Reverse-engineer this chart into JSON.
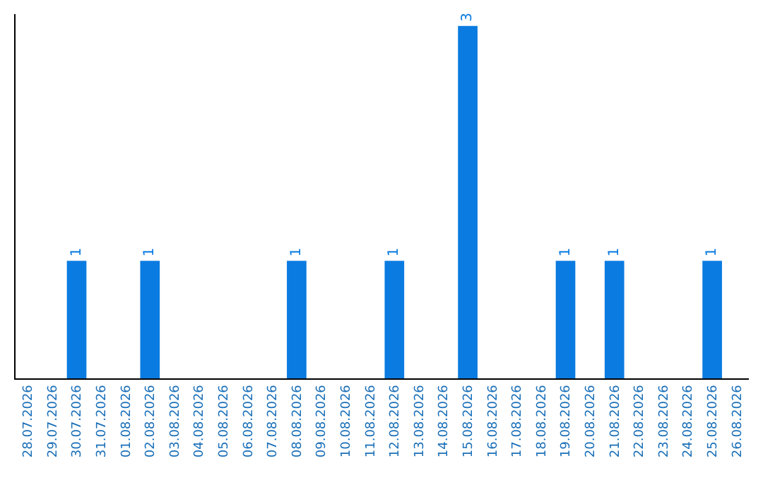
{
  "chart_data": {
    "type": "bar",
    "categories": [
      "28.07.2026",
      "29.07.2026",
      "30.07.2026",
      "31.07.2026",
      "01.08.2026",
      "02.08.2026",
      "03.08.2026",
      "04.08.2026",
      "05.08.2026",
      "06.08.2026",
      "07.08.2026",
      "08.08.2026",
      "09.08.2026",
      "10.08.2026",
      "11.08.2026",
      "12.08.2026",
      "13.08.2026",
      "14.08.2026",
      "15.08.2026",
      "16.08.2026",
      "17.08.2026",
      "18.08.2026",
      "19.08.2026",
      "20.08.2026",
      "21.08.2026",
      "22.08.2026",
      "23.08.2026",
      "24.08.2026",
      "25.08.2026",
      "26.08.2026"
    ],
    "values": [
      0,
      0,
      1,
      0,
      0,
      1,
      0,
      0,
      0,
      0,
      0,
      1,
      0,
      0,
      0,
      1,
      0,
      0,
      3,
      0,
      0,
      0,
      1,
      0,
      1,
      0,
      0,
      0,
      1,
      0
    ],
    "value_labels": [
      null,
      null,
      "1",
      null,
      null,
      "1",
      null,
      null,
      null,
      null,
      null,
      "1",
      null,
      null,
      null,
      "1",
      null,
      null,
      "3",
      null,
      null,
      null,
      "1",
      null,
      "1",
      null,
      null,
      null,
      "1",
      null
    ],
    "color": "#0a7be0",
    "ylim": [
      0,
      3.1
    ],
    "tick_labels": "x"
  }
}
